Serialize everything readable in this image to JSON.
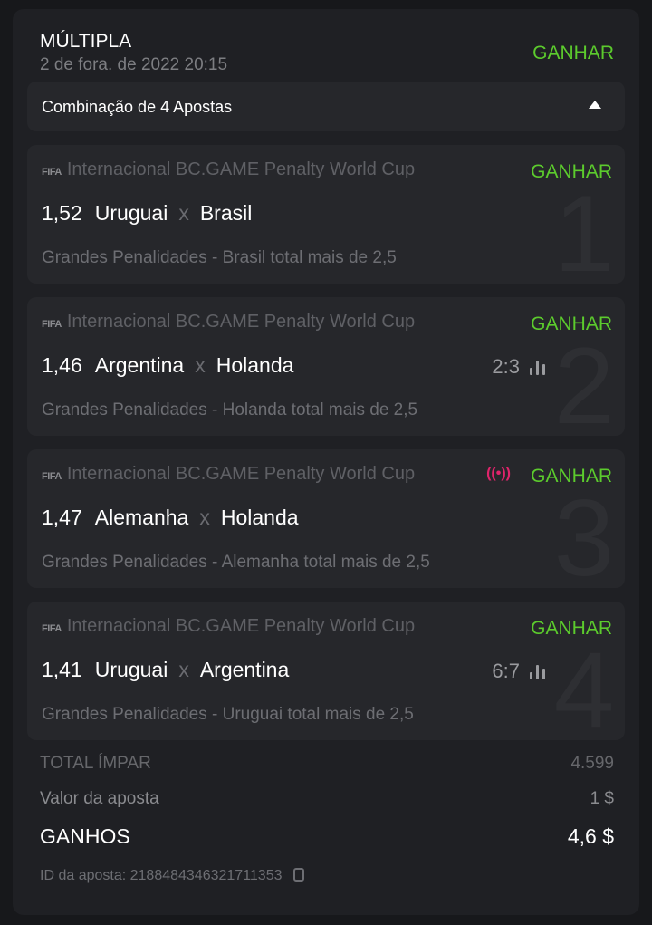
{
  "header": {
    "title": "MÚLTIPLA",
    "date": "2 de fora. de 2022 20:15",
    "status": "GANHAR"
  },
  "combination": {
    "label": "Combinação de 4 Apostas"
  },
  "colors": {
    "win": "#5ccb2d",
    "live": "#e0246b"
  },
  "bets": [
    {
      "number": "1",
      "league_icon": "FIFA",
      "league": "Internacional BC.GAME Penalty World Cup",
      "status": "GANHAR",
      "odds": "1,52",
      "home": "Uruguai",
      "sep": "x",
      "away": "Brasil",
      "score": "",
      "market": "Grandes Penalidades - Brasil total mais de 2,5"
    },
    {
      "number": "2",
      "league_icon": "FIFA",
      "league": "Internacional BC.GAME Penalty World Cup",
      "status": "GANHAR",
      "odds": "1,46",
      "home": "Argentina",
      "sep": "x",
      "away": "Holanda",
      "score": "2:3",
      "market": "Grandes Penalidades - Holanda total mais de 2,5"
    },
    {
      "number": "3",
      "league_icon": "FIFA",
      "league": "Internacional BC.GAME Penalty World Cup",
      "status": "GANHAR",
      "live_icon": "((•))",
      "odds": "1,47",
      "home": "Alemanha",
      "sep": "x",
      "away": "Holanda",
      "score": "",
      "market": "Grandes Penalidades - Alemanha total mais de 2,5"
    },
    {
      "number": "4",
      "league_icon": "FIFA",
      "league": "Internacional BC.GAME Penalty World Cup",
      "status": "GANHAR",
      "odds": "1,41",
      "home": "Uruguai",
      "sep": "x",
      "away": "Argentina",
      "score": "6:7",
      "market": "Grandes Penalidades - Uruguai total mais de 2,5"
    }
  ],
  "summary": {
    "total_odds_label": "TOTAL ÍMPAR",
    "total_odds": "4.599",
    "stake_label": "Valor da aposta",
    "stake": "1 $",
    "winnings_label": "GANHOS",
    "winnings": "4,6 $"
  },
  "bet_id": "ID da aposta: 2188484346321711353"
}
